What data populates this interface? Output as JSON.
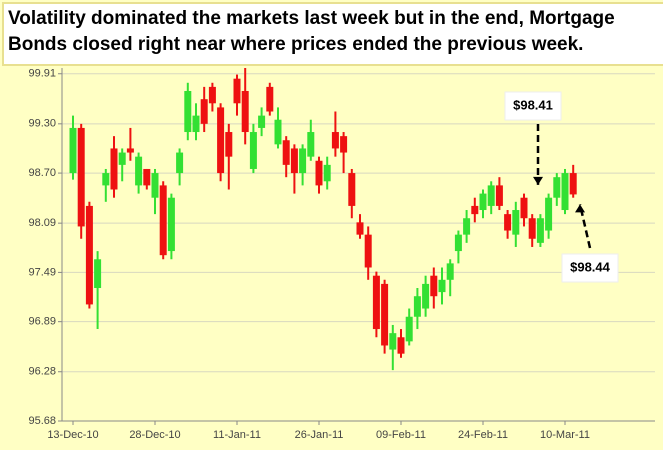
{
  "chart_data": {
    "type": "candlestick",
    "title": "Volatility dominated the markets last week but in the end, Mortgage Bonds closed right near where prices ended the previous week.",
    "categories": [
      "13-Dec-10",
      null,
      null,
      null,
      null,
      null,
      null,
      null,
      null,
      null,
      "28-Dec-10",
      null,
      null,
      null,
      null,
      null,
      null,
      null,
      null,
      null,
      "11-Jan-11",
      null,
      null,
      null,
      null,
      null,
      null,
      null,
      null,
      null,
      "26-Jan-11",
      null,
      null,
      null,
      null,
      null,
      null,
      null,
      null,
      null,
      "09-Feb-11",
      null,
      null,
      null,
      null,
      null,
      null,
      null,
      null,
      null,
      "24-Feb-11",
      null,
      null,
      null,
      null,
      null,
      null,
      null,
      null,
      null,
      "10-Mar-11",
      null
    ],
    "open": [
      98.7,
      99.25,
      98.3,
      97.3,
      98.55,
      99.0,
      98.8,
      99.0,
      98.55,
      98.75,
      98.4,
      98.55,
      97.75,
      98.7,
      99.2,
      99.2,
      99.6,
      99.75,
      99.5,
      99.2,
      99.85,
      99.7,
      98.75,
      99.25,
      99.75,
      99.05,
      99.1,
      99.0,
      98.7,
      98.9,
      98.85,
      98.6,
      99.2,
      99.15,
      98.7,
      98.1,
      97.95,
      97.45,
      97.35,
      96.55,
      96.7,
      96.65,
      96.95,
      97.05,
      97.45,
      97.25,
      97.4,
      97.75,
      97.95,
      98.3,
      98.25,
      98.3,
      98.55,
      98.2,
      97.95,
      98.4,
      98.15,
      97.85,
      98.0,
      98.4,
      98.25,
      98.7
    ],
    "high": [
      99.4,
      99.3,
      98.35,
      97.75,
      98.75,
      99.15,
      99.0,
      99.25,
      98.95,
      98.75,
      98.75,
      98.6,
      98.45,
      99.0,
      99.8,
      99.55,
      99.75,
      99.8,
      99.55,
      99.3,
      99.9,
      99.98,
      99.3,
      99.5,
      99.8,
      99.5,
      99.15,
      99.05,
      99.05,
      99.35,
      98.9,
      98.9,
      99.45,
      99.2,
      98.75,
      98.2,
      98.05,
      97.5,
      97.4,
      96.85,
      96.8,
      97.05,
      97.3,
      97.45,
      97.55,
      97.55,
      97.65,
      98.0,
      98.25,
      98.4,
      98.5,
      98.6,
      98.65,
      98.25,
      98.35,
      98.45,
      98.2,
      98.2,
      98.45,
      98.7,
      98.75,
      98.8
    ],
    "low": [
      98.62,
      97.9,
      97.05,
      96.8,
      98.35,
      98.4,
      98.6,
      98.85,
      98.45,
      98.5,
      98.2,
      97.65,
      97.65,
      98.55,
      99.1,
      99.1,
      99.2,
      99.45,
      98.6,
      98.5,
      99.4,
      99.05,
      98.7,
      99.15,
      99.4,
      99.0,
      98.65,
      98.45,
      98.55,
      98.85,
      98.45,
      98.5,
      98.9,
      98.7,
      98.15,
      97.9,
      97.4,
      96.7,
      96.5,
      96.3,
      96.45,
      96.6,
      96.8,
      96.95,
      97.05,
      97.1,
      97.2,
      97.6,
      97.85,
      98.1,
      98.15,
      98.2,
      98.25,
      97.9,
      97.8,
      98.05,
      97.8,
      97.8,
      97.9,
      98.3,
      98.2,
      98.4
    ],
    "close": [
      99.25,
      98.05,
      97.1,
      97.65,
      98.7,
      98.5,
      98.95,
      98.95,
      98.9,
      98.55,
      98.7,
      97.7,
      98.4,
      98.95,
      99.7,
      99.4,
      99.3,
      99.55,
      98.7,
      98.9,
      99.55,
      99.2,
      99.2,
      99.4,
      99.45,
      99.35,
      98.8,
      98.7,
      99.0,
      99.2,
      98.55,
      98.8,
      99.0,
      98.95,
      98.3,
      97.95,
      97.55,
      96.8,
      96.6,
      96.75,
      96.5,
      96.95,
      97.2,
      97.35,
      97.2,
      97.4,
      97.6,
      97.95,
      98.15,
      98.2,
      98.45,
      98.55,
      98.3,
      98.0,
      98.25,
      98.15,
      97.9,
      98.15,
      98.4,
      98.65,
      98.7,
      98.44
    ],
    "up_color": "#33e033",
    "down_color": "#ee1111",
    "ylim": [
      95.68,
      99.98
    ],
    "yticks": [
      95.68,
      96.28,
      96.89,
      97.49,
      98.09,
      {
        "value": 98.7,
        "label": "98.70"
      },
      {
        "value": 99.3,
        "label": "99.30"
      },
      99.91
    ],
    "grid": true,
    "annotations": [
      {
        "label": "$98.41",
        "value": 98.41
      },
      {
        "label": "$98.44",
        "value": 98.44
      }
    ]
  }
}
